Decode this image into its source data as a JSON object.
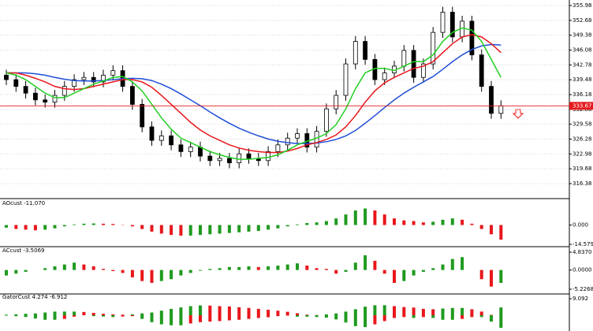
{
  "chart_data": [
    {
      "type": "candlestick",
      "ylim": [
        313.4,
        357.21
      ],
      "yticks": [
        355.98,
        352.68,
        349.38,
        346.08,
        342.78,
        339.48,
        336.18,
        332.88,
        329.58,
        326.28,
        322.98,
        319.68,
        316.38
      ],
      "grid": true,
      "current_price": 333.67,
      "current_price_color": "#e31a1c",
      "up_color": "#ffffff",
      "down_color": "#000000",
      "open": [
        340.5,
        339.5,
        338,
        336.5,
        335,
        334.5,
        336,
        338,
        339.5,
        340,
        339,
        340.5,
        341.5,
        338,
        334,
        329,
        326,
        327,
        325,
        323.5,
        324.5,
        322.5,
        321.5,
        322,
        321,
        323,
        322,
        321.5,
        323.5,
        325,
        326.5,
        327.5,
        324.5,
        328,
        333,
        336,
        343,
        348,
        344,
        339.5,
        341,
        342.5,
        346,
        340,
        343,
        350,
        354.5,
        349,
        352.5,
        345,
        338,
        332
      ],
      "high": [
        341.7,
        340.7,
        339.2,
        337.7,
        336.2,
        337.2,
        339.2,
        340.7,
        341.2,
        341.2,
        341.7,
        342.7,
        342.7,
        339.2,
        335.2,
        330.2,
        328.2,
        328.2,
        326.2,
        325.7,
        325.7,
        323.7,
        323.2,
        323.2,
        324.2,
        324.2,
        323.2,
        324.7,
        326.2,
        327.7,
        328.7,
        328.7,
        329.2,
        334.2,
        337.2,
        344.2,
        349.2,
        349.2,
        345.2,
        342.2,
        343.7,
        347.2,
        347.2,
        344.2,
        351.2,
        355.7,
        355.7,
        353.7,
        353.7,
        346.2,
        339.2,
        334.9
      ],
      "low": [
        338.3,
        336.8,
        335.3,
        333.8,
        333.3,
        333.3,
        334.8,
        336.8,
        338.3,
        337.8,
        337.8,
        339.3,
        336.8,
        332.8,
        327.8,
        324.8,
        324.8,
        323.8,
        322.3,
        322.3,
        321.3,
        320.3,
        320.3,
        319.8,
        319.8,
        320.8,
        320.3,
        320.3,
        322.3,
        323.8,
        325.3,
        323.3,
        323.3,
        326.8,
        331.8,
        334.8,
        341.8,
        342.8,
        338.3,
        338.3,
        339.8,
        341.3,
        338.8,
        338.8,
        341.8,
        348.8,
        347.8,
        347.8,
        343.8,
        336.8,
        330.8,
        330.8
      ],
      "close": [
        339.5,
        338,
        336.5,
        335,
        334.5,
        336,
        338,
        339.5,
        340,
        339,
        340.5,
        341.5,
        338,
        334,
        329,
        326,
        327,
        325,
        323.5,
        324.5,
        322.5,
        321.5,
        322,
        321,
        323,
        322,
        321.5,
        323.5,
        325,
        326.5,
        327.5,
        324.5,
        328,
        333,
        336,
        343,
        348,
        344,
        339.5,
        341,
        342.5,
        346,
        340,
        343,
        350,
        354.5,
        349,
        352.5,
        345,
        338,
        332,
        333.67
      ],
      "lines": [
        {
          "color": "#1f4fd8",
          "values": [
            341,
            341,
            341,
            340.8,
            340.5,
            340,
            339.6,
            339.3,
            339.2,
            339.2,
            339.3,
            339.5,
            339.7,
            339.8,
            339.7,
            339.3,
            338.5,
            337.5,
            336.3,
            335,
            333.7,
            332.3,
            331,
            329.8,
            328.7,
            327.8,
            327,
            326.3,
            325.8,
            325.5,
            325.3,
            325.3,
            325.4,
            325.7,
            326.2,
            327,
            328.2,
            329.8,
            331.5,
            333.3,
            335,
            336.5,
            337.8,
            339,
            340.2,
            341.8,
            343.5,
            345,
            346.2,
            347,
            347.3,
            347.2
          ]
        },
        {
          "color": "#e8161b",
          "values": [
            341,
            341,
            340.5,
            339.8,
            339,
            338,
            337.5,
            337.3,
            337.5,
            338,
            338.5,
            339,
            339.5,
            339.5,
            339,
            337.8,
            336,
            334,
            332,
            330,
            328.3,
            327,
            326,
            325,
            324.3,
            323.8,
            323.5,
            323.3,
            323.3,
            323.6,
            324.2,
            325,
            325.5,
            326.2,
            327.2,
            329,
            331.5,
            334.5,
            337,
            338.8,
            340,
            341,
            342,
            342.5,
            343.5,
            345.5,
            347.5,
            349,
            349.5,
            349,
            347.5,
            345.5
          ]
        },
        {
          "color": "#22d022",
          "values": [
            341,
            340.5,
            339.5,
            338,
            336.5,
            335.5,
            335.5,
            336.5,
            337.5,
            338.5,
            339.2,
            340,
            340.2,
            339,
            337,
            334,
            331,
            328.5,
            326.5,
            325.5,
            324.5,
            323.5,
            322.8,
            322.2,
            321.8,
            321.8,
            322,
            322.2,
            322.8,
            323.8,
            325,
            325.8,
            326.5,
            327.5,
            329.5,
            333,
            337.5,
            341,
            342,
            342,
            341.5,
            342.5,
            343.5,
            343.5,
            345,
            348,
            350,
            351,
            350.5,
            348,
            344,
            340
          ]
        }
      ]
    },
    {
      "type": "bar",
      "title": "AOcust -11.070",
      "ylim": [
        -14.579,
        14.02
      ],
      "yticks": [
        {
          "value": 0,
          "label": "0.000"
        },
        -14.579
      ],
      "up_color": "#1f9a1f",
      "down_color": "#e8161b",
      "values": [
        -2,
        -3,
        -3.5,
        -4,
        -3.5,
        -2.5,
        -1,
        0.5,
        1,
        1.2,
        1,
        0.8,
        0.2,
        -1,
        -3,
        -5,
        -6.5,
        -7.5,
        -8,
        -8,
        -7.5,
        -7,
        -6.5,
        -6,
        -5.5,
        -5,
        -4.5,
        -3.5,
        -2.5,
        -1,
        0.5,
        1.5,
        2,
        3,
        5,
        8,
        11,
        12.5,
        11,
        8,
        5,
        3.5,
        3,
        2,
        2.5,
        4,
        5,
        4,
        1,
        -3,
        -7,
        -11.07
      ]
    },
    {
      "type": "bar",
      "title": "ACcust -3.5069",
      "ylim": [
        -5.2268,
        4.837
      ],
      "yticks": [
        {
          "value": 4.837,
          "label": "4.8370"
        },
        {
          "value": 0,
          "label": "0.0000"
        },
        -5.2268
      ],
      "up_color": "#1f9a1f",
      "down_color": "#e8161b",
      "values": [
        -1.5,
        -1,
        -0.5,
        0,
        0.5,
        1,
        1.5,
        2,
        1.5,
        1,
        0.3,
        -0.3,
        -0.8,
        -2,
        -3,
        -3.5,
        -3,
        -2.5,
        -1.5,
        -0.8,
        -0.2,
        0.3,
        0.5,
        0.8,
        0.8,
        1,
        0.8,
        1,
        1.2,
        1.5,
        1.8,
        1.2,
        0.5,
        0.3,
        -1,
        -0.5,
        2,
        4,
        2.5,
        -1,
        -3.5,
        -3,
        -1.5,
        -0.5,
        0.5,
        1.5,
        3,
        3.5,
        0,
        -2.5,
        -4.5,
        -3.5069
      ]
    },
    {
      "type": "gator",
      "title": "GatorCust 4.274 -6.912",
      "ylim": [
        -9.092,
        9.092
      ],
      "yticks": [
        9.092
      ],
      "up_color": "#1f9a1f",
      "down_color": "#e8161b",
      "upper": [
        0.3,
        0.5,
        0.8,
        1,
        1.5,
        2,
        2,
        2,
        1.8,
        1.3,
        0.8,
        0.5,
        0.3,
        0.5,
        1,
        1.5,
        2.5,
        3.5,
        4.3,
        5,
        5.4,
        5.3,
        5,
        4.8,
        4.4,
        4,
        3.5,
        3,
        2.5,
        1.9,
        1.1,
        0.3,
        0.1,
        0.5,
        1,
        2,
        3.3,
        4.7,
        5.5,
        5.5,
        5,
        4.5,
        4.2,
        3.5,
        3.3,
        3.7,
        4,
        4,
        3.3,
        2,
        0.2,
        4.274
      ],
      "lower": [
        -0.2,
        -0.5,
        -1,
        -1.8,
        -2.5,
        -2.5,
        -2,
        -0.8,
        0,
        -0.5,
        -0.7,
        -1,
        -0.7,
        -0.5,
        -2,
        -3.8,
        -5,
        -5.5,
        -5.5,
        -4.5,
        -3.8,
        -3.5,
        -3.2,
        -2.8,
        -2.5,
        -2,
        -1.5,
        -1.1,
        -0.5,
        -0.2,
        -0.8,
        -0.8,
        -1,
        -1.3,
        -2.3,
        -4,
        -6,
        -6.5,
        -5,
        -3.2,
        -1.5,
        -1,
        -1.5,
        -1,
        -1.5,
        -2.5,
        -2.5,
        -2,
        -1,
        -1,
        -3.5,
        -6.912
      ]
    }
  ]
}
